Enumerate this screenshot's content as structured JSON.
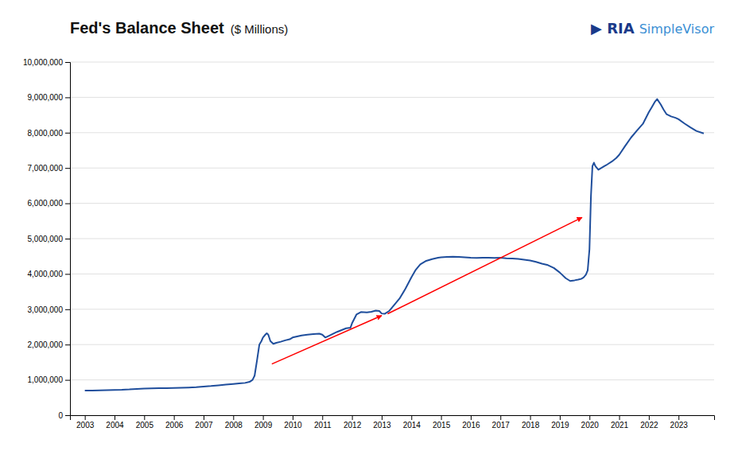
{
  "chart_data": {
    "type": "line",
    "title": "Fed's Balance Sheet",
    "subtitle": "($ Millions)",
    "color": "#1f4e9c",
    "grid": true,
    "xlim": [
      2002.5,
      2024.2
    ],
    "xticks": [
      2003,
      2004,
      2005,
      2006,
      2007,
      2008,
      2009,
      2010,
      2011,
      2012,
      2013,
      2014,
      2015,
      2016,
      2017,
      2018,
      2019,
      2020,
      2021,
      2022,
      2023
    ],
    "ylim": [
      0,
      10000000
    ],
    "yticks": [
      0,
      {
        "value": 1000000,
        "label": "1,000,000"
      },
      {
        "value": 2000000,
        "label": "2,000,000"
      },
      {
        "value": 3000000,
        "label": "3,000,000"
      },
      {
        "value": 4000000,
        "label": "4,000,000"
      },
      {
        "value": 5000000,
        "label": "5,000,000"
      },
      {
        "value": 6000000,
        "label": "6,000,000"
      },
      {
        "value": 7000000,
        "label": "7,000,000"
      },
      {
        "value": 8000000,
        "label": "8,000,000"
      },
      {
        "value": 9000000,
        "label": "9,000,000"
      },
      {
        "value": 10000000,
        "label": "10,000,000"
      }
    ],
    "annotations": [
      {
        "text": "▶ RIA",
        "color": "#1a3a8a"
      },
      {
        "text": "SimpleVisor",
        "color": "#3a8fd4"
      }
    ],
    "arrows": [
      {
        "x": [
          2009.3,
          2013.0
        ],
        "y": [
          1450000,
          2820000
        ],
        "color": "red"
      },
      {
        "x": [
          2013.2,
          2019.75
        ],
        "y": [
          2870000,
          5600000
        ],
        "color": "red"
      }
    ],
    "x": [
      2003.0,
      2003.25,
      2003.5,
      2003.75,
      2004.0,
      2004.25,
      2004.5,
      2004.75,
      2005.0,
      2005.25,
      2005.5,
      2005.75,
      2006.0,
      2006.25,
      2006.5,
      2006.75,
      2007.0,
      2007.25,
      2007.5,
      2007.75,
      2008.0,
      2008.2,
      2008.4,
      2008.55,
      2008.65,
      2008.72,
      2008.8,
      2008.88,
      2008.95,
      2009.0,
      2009.08,
      2009.13,
      2009.18,
      2009.25,
      2009.35,
      2009.45,
      2009.6,
      2009.75,
      2009.9,
      2010.0,
      2010.15,
      2010.3,
      2010.5,
      2010.7,
      2010.9,
      2011.0,
      2011.1,
      2011.2,
      2011.35,
      2011.5,
      2011.65,
      2011.8,
      2011.95,
      2012.0,
      2012.15,
      2012.3,
      2012.5,
      2012.65,
      2012.8,
      2012.92,
      2013.0,
      2013.1,
      2013.25,
      2013.4,
      2013.6,
      2013.8,
      2014.0,
      2014.15,
      2014.3,
      2014.5,
      2014.7,
      2014.9,
      2015.0,
      2015.2,
      2015.4,
      2015.6,
      2015.8,
      2016.0,
      2016.2,
      2016.4,
      2016.6,
      2016.8,
      2017.0,
      2017.2,
      2017.4,
      2017.6,
      2017.8,
      2018.0,
      2018.2,
      2018.4,
      2018.6,
      2018.8,
      2019.0,
      2019.2,
      2019.35,
      2019.5,
      2019.62,
      2019.72,
      2019.8,
      2019.88,
      2019.94,
      2020.0,
      2020.05,
      2020.1,
      2020.15,
      2020.2,
      2020.3,
      2020.4,
      2020.5,
      2020.6,
      2020.75,
      2020.9,
      2021.0,
      2021.2,
      2021.4,
      2021.6,
      2021.8,
      2022.0,
      2022.1,
      2022.2,
      2022.28,
      2022.4,
      2022.5,
      2022.6,
      2022.75,
      2022.9,
      2023.0,
      2023.2,
      2023.4,
      2023.6,
      2023.85
    ],
    "values": [
      700000,
      700000,
      705000,
      710000,
      715000,
      720000,
      730000,
      745000,
      755000,
      760000,
      765000,
      768000,
      772000,
      778000,
      783000,
      792000,
      810000,
      825000,
      845000,
      865000,
      885000,
      900000,
      915000,
      945000,
      1000000,
      1120000,
      1550000,
      2000000,
      2100000,
      2200000,
      2280000,
      2320000,
      2280000,
      2100000,
      2020000,
      2050000,
      2080000,
      2120000,
      2150000,
      2200000,
      2230000,
      2260000,
      2280000,
      2295000,
      2310000,
      2280000,
      2200000,
      2240000,
      2300000,
      2360000,
      2410000,
      2460000,
      2480000,
      2600000,
      2850000,
      2920000,
      2910000,
      2930000,
      2960000,
      2950000,
      2880000,
      2870000,
      2950000,
      3100000,
      3300000,
      3580000,
      3900000,
      4120000,
      4270000,
      4370000,
      4420000,
      4460000,
      4470000,
      4480000,
      4490000,
      4480000,
      4470000,
      4460000,
      4455000,
      4460000,
      4462000,
      4455000,
      4460000,
      4445000,
      4435000,
      4425000,
      4405000,
      4380000,
      4340000,
      4290000,
      4250000,
      4170000,
      4040000,
      3880000,
      3800000,
      3820000,
      3840000,
      3860000,
      3900000,
      3980000,
      4100000,
      4700000,
      6200000,
      7050000,
      7150000,
      7050000,
      6950000,
      7000000,
      7050000,
      7100000,
      7180000,
      7280000,
      7370000,
      7620000,
      7860000,
      8060000,
      8250000,
      8580000,
      8720000,
      8870000,
      8950000,
      8800000,
      8650000,
      8520000,
      8460000,
      8420000,
      8380000,
      8260000,
      8150000,
      8050000,
      7980000
    ]
  }
}
